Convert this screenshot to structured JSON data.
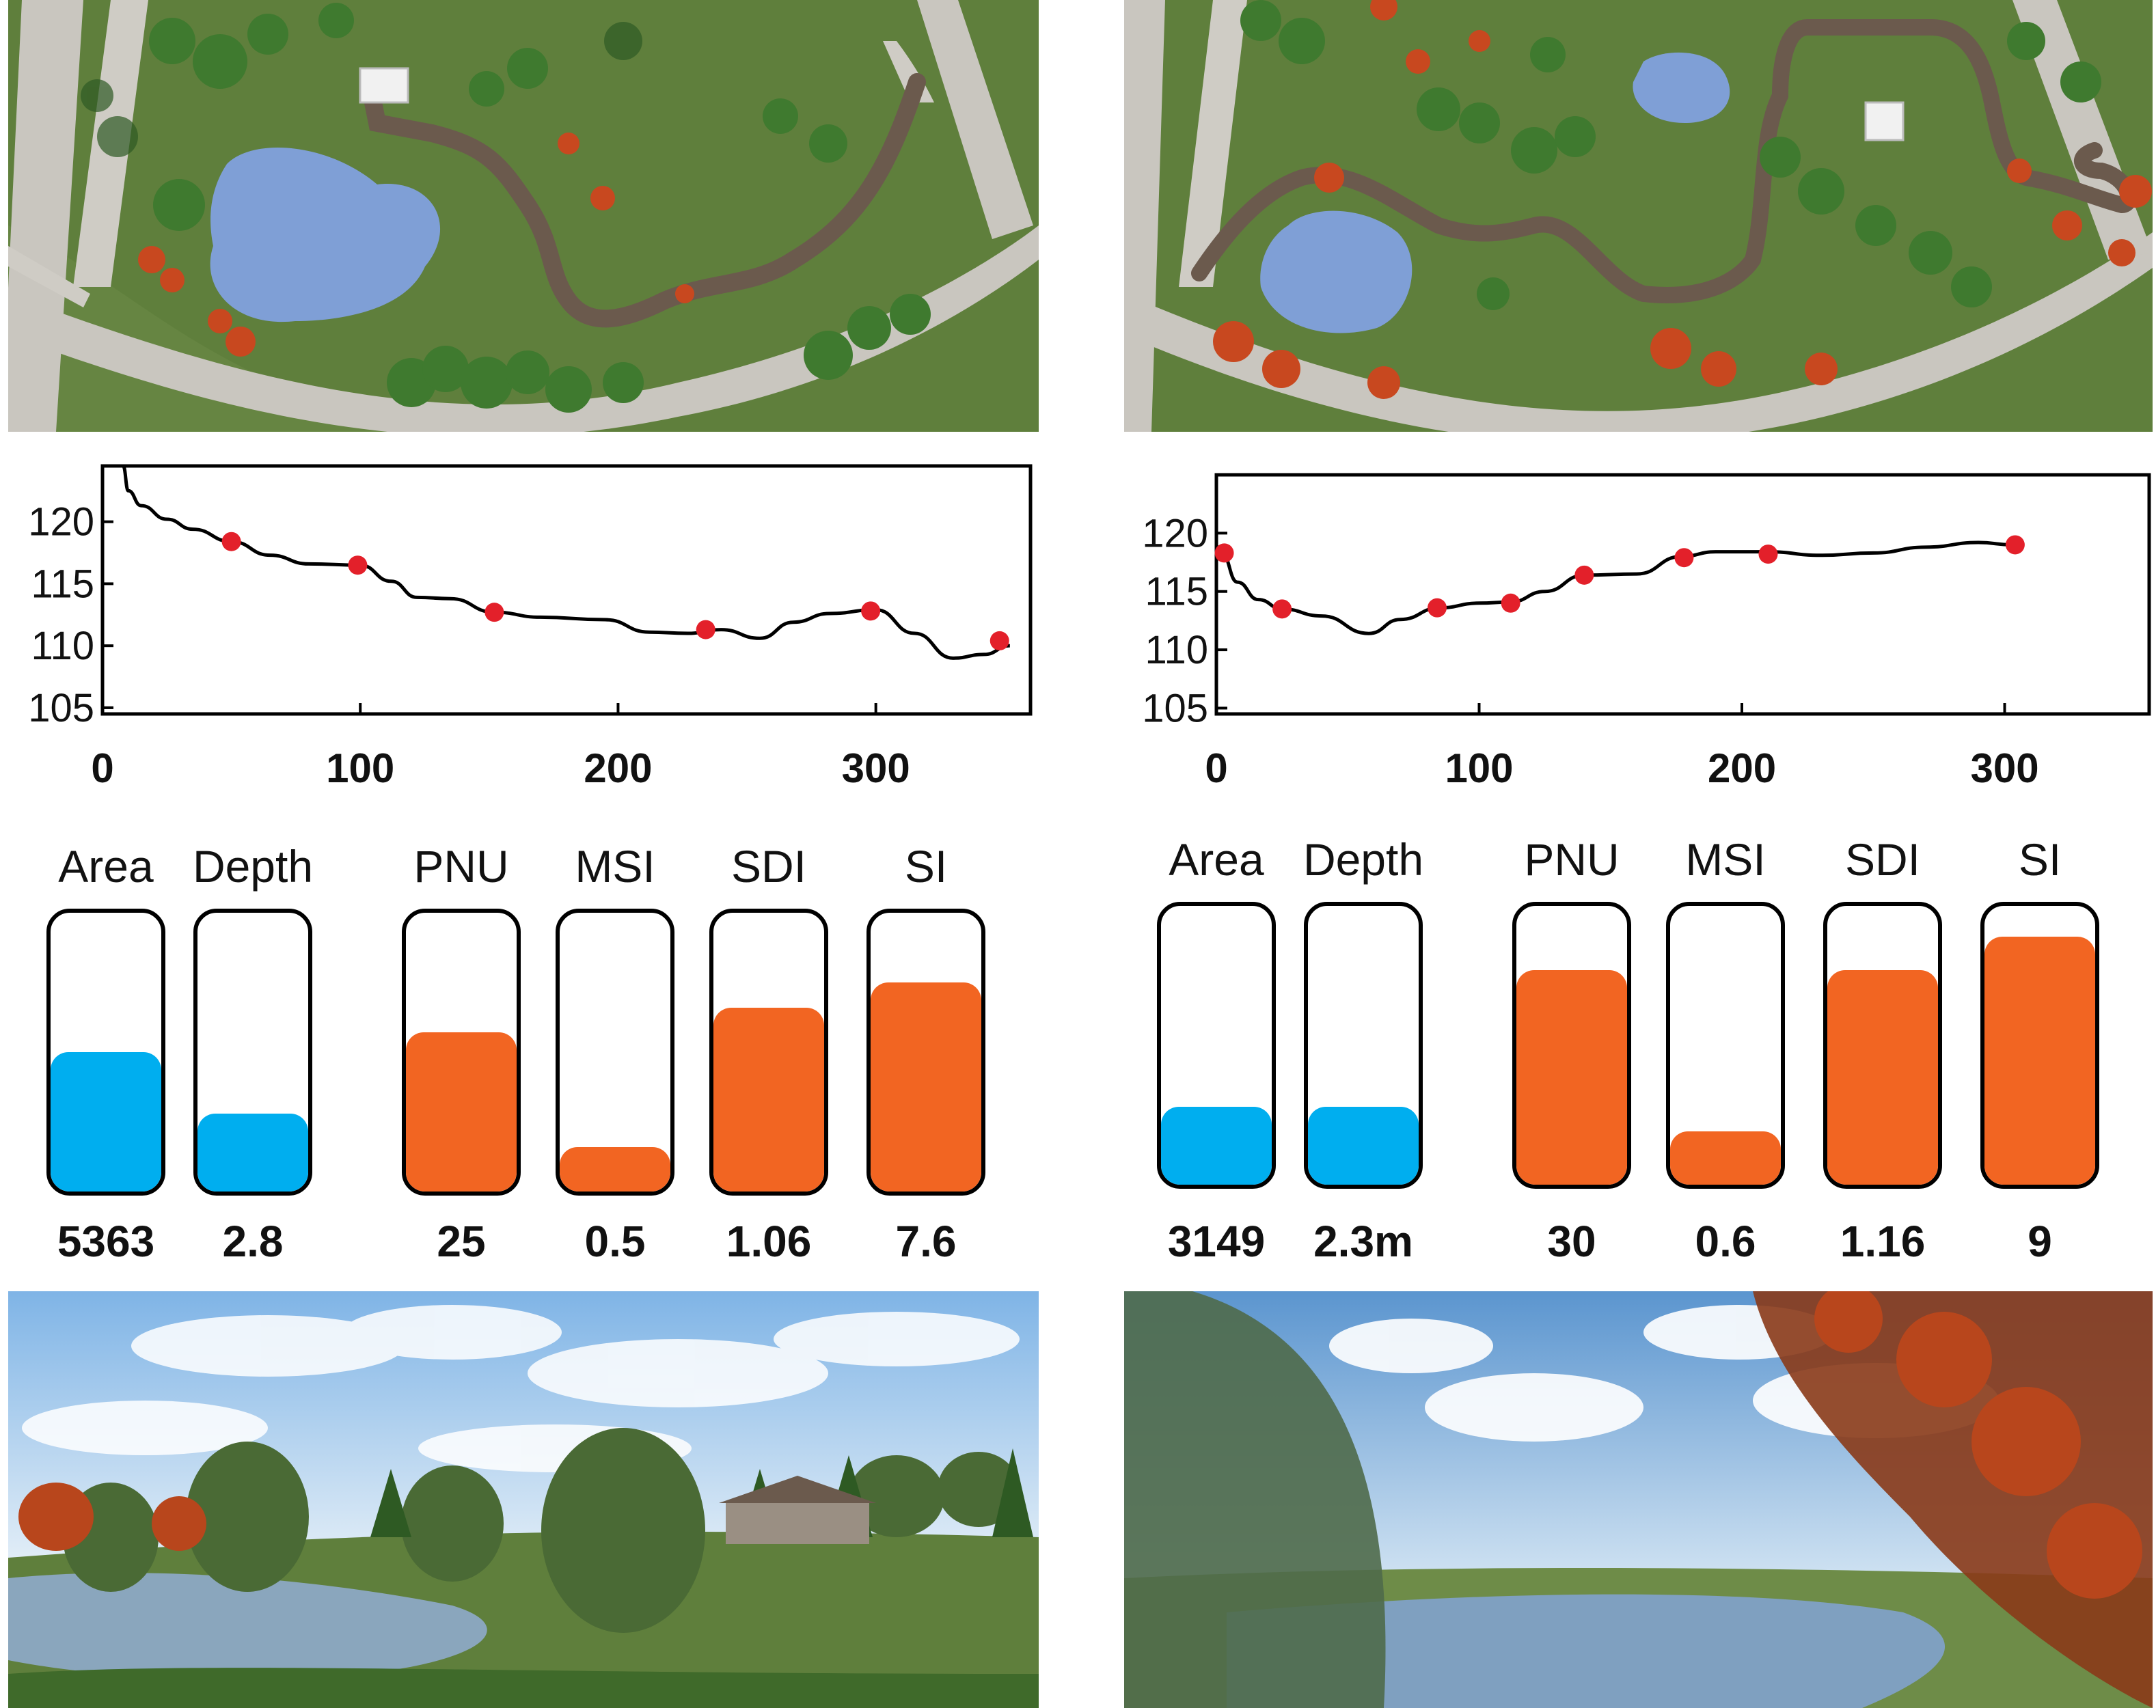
{
  "colors": {
    "grass": "#5f7f3c",
    "road": "#c9c6bf",
    "water": "#7f9fd6",
    "path": "#6b5a4d",
    "tree_green": "#3f7a2f",
    "tree_orange": "#c8481f",
    "line": "#000000",
    "point": "#e3202a",
    "bar_blue": "#00aeef",
    "bar_orange": "#f26522",
    "sky": "#9ec7ee"
  },
  "chart_data": [
    {
      "type": "line",
      "title": "",
      "xlabel": "",
      "ylabel": "",
      "xlim": [
        0,
        360
      ],
      "ylim": [
        104.5,
        124.5
      ],
      "xticks": [
        0,
        100,
        200,
        300
      ],
      "yticks": [
        105,
        110,
        115,
        120
      ],
      "curve": {
        "x": [
          8,
          10,
          15,
          25,
          35,
          50,
          65,
          80,
          100,
          112,
          122,
          135,
          152,
          170,
          195,
          212,
          227,
          240,
          255,
          268,
          282,
          300,
          315,
          330,
          342,
          352
        ],
        "y": [
          124.5,
          122.5,
          121.3,
          120.2,
          119.4,
          118.4,
          117.3,
          116.6,
          116.5,
          115.2,
          113.9,
          113.8,
          112.7,
          112.3,
          112.1,
          111.1,
          111.0,
          111.3,
          110.6,
          111.9,
          112.6,
          112.9,
          111.0,
          109.0,
          109.3,
          110.0
        ]
      },
      "points": {
        "x": [
          50,
          99,
          152,
          234,
          298,
          348
        ],
        "y": [
          118.4,
          116.5,
          112.7,
          111.3,
          112.8,
          110.4
        ]
      }
    },
    {
      "type": "line",
      "title": "",
      "xlabel": "",
      "ylabel": "",
      "xlim": [
        0,
        355
      ],
      "ylim": [
        104.5,
        125
      ],
      "xticks": [
        0,
        100,
        200,
        300
      ],
      "yticks": [
        105,
        110,
        115,
        120
      ],
      "curve": {
        "x": [
          2,
          8,
          16,
          25,
          40,
          58,
          70,
          85,
          100,
          112,
          125,
          140,
          160,
          177,
          190,
          210,
          230,
          250,
          270,
          290,
          303
        ],
        "y": [
          118.3,
          115.8,
          114.3,
          113.5,
          112.9,
          111.4,
          112.6,
          113.6,
          114.0,
          114.1,
          115.0,
          116.4,
          116.5,
          118.0,
          118.4,
          118.4,
          118.1,
          118.3,
          118.8,
          119.2,
          119.0
        ]
      },
      "points": {
        "x": [
          3,
          25,
          84,
          112,
          140,
          178,
          210,
          304
        ],
        "y": [
          118.3,
          113.5,
          113.6,
          114.0,
          116.4,
          117.9,
          118.2,
          119.0
        ]
      }
    },
    {
      "type": "bar",
      "categories": [
        "Area",
        "Depth",
        "PNU",
        "MSI",
        "SDI",
        "SI"
      ],
      "values": [
        "5363",
        "2.8",
        "25",
        "0.5",
        "1.06",
        "7.6"
      ],
      "fill_levels": [
        0.5,
        0.28,
        0.57,
        0.16,
        0.66,
        0.75
      ],
      "fill_colors": [
        "blue",
        "blue",
        "orange",
        "orange",
        "orange",
        "orange"
      ]
    },
    {
      "type": "bar",
      "categories": [
        "Area",
        "Depth",
        "PNU",
        "MSI",
        "SDI",
        "SI"
      ],
      "values": [
        "3149",
        "2.3m",
        "30",
        "0.6",
        "1.16",
        "9"
      ],
      "fill_levels": [
        0.28,
        0.28,
        0.77,
        0.19,
        0.77,
        0.89
      ],
      "fill_colors": [
        "blue",
        "blue",
        "orange",
        "orange",
        "orange",
        "orange"
      ]
    }
  ]
}
